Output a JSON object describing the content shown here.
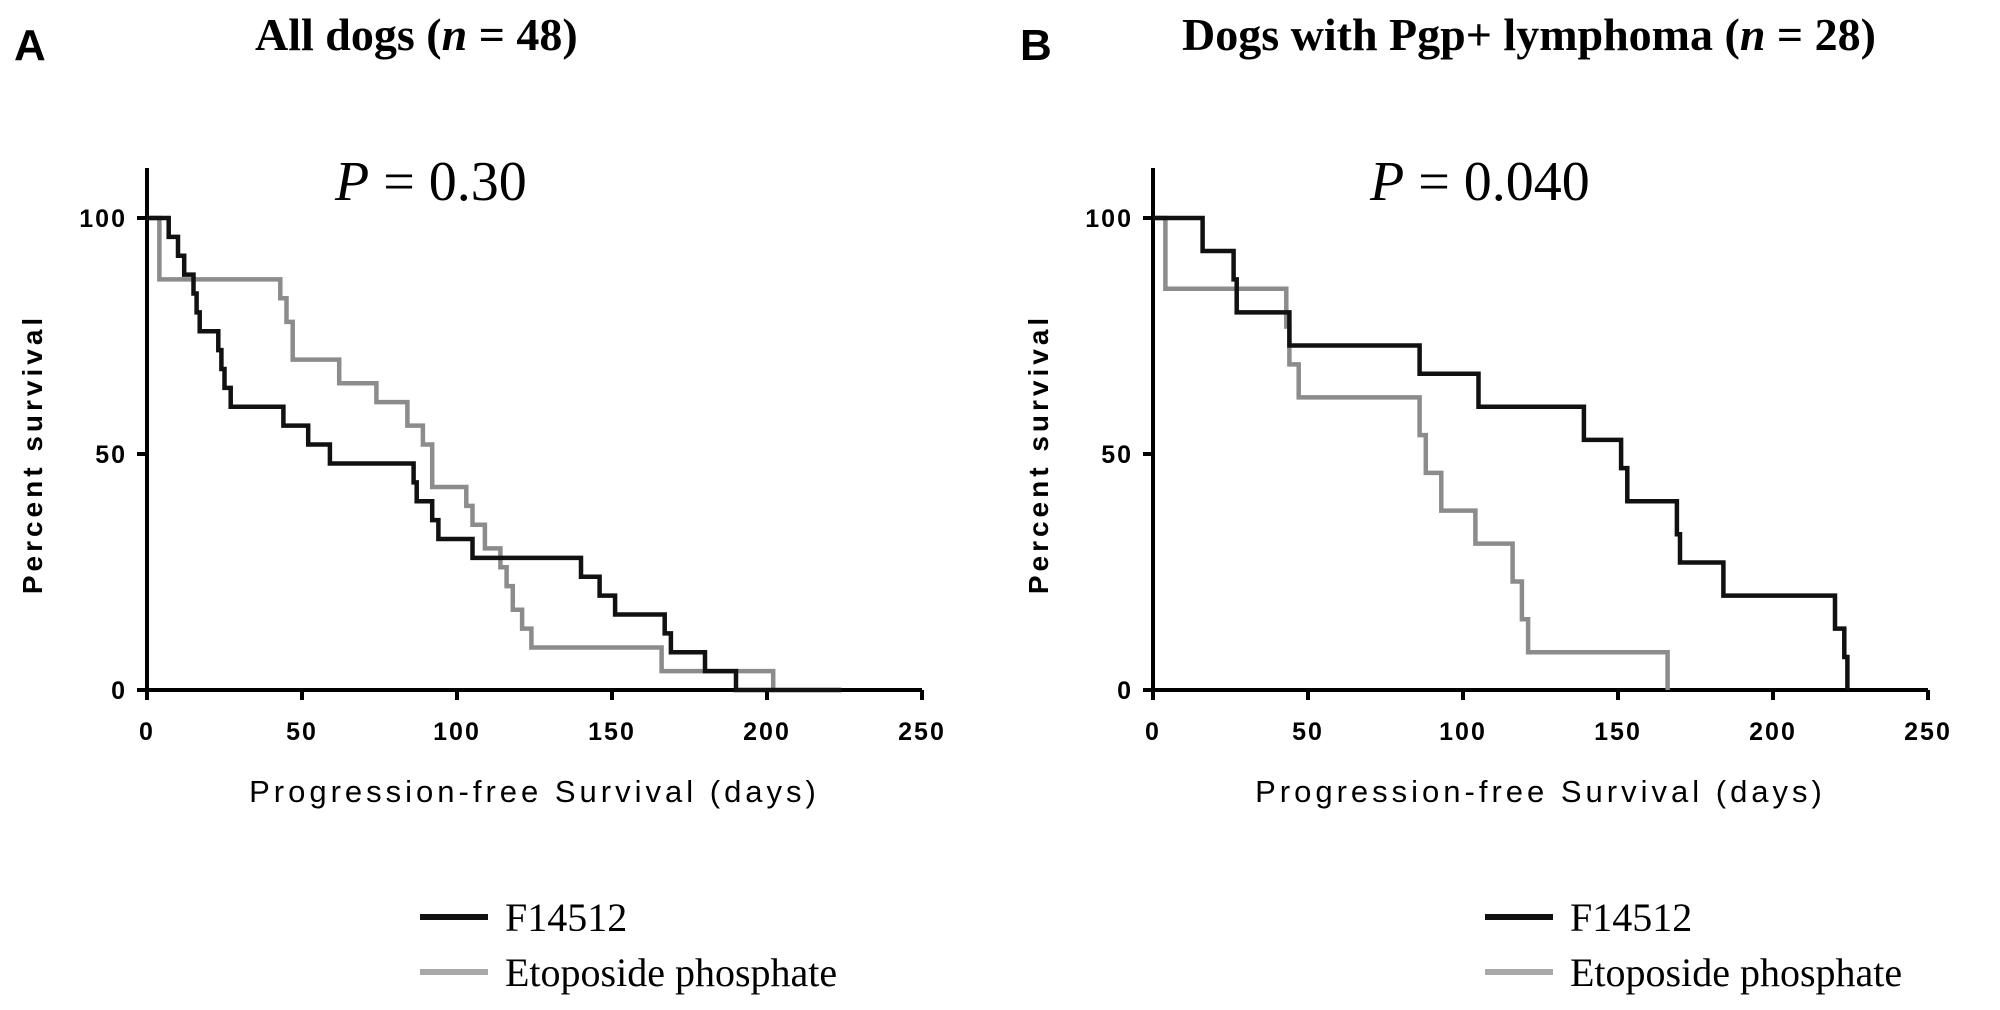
{
  "colors": {
    "F14512": "#111111",
    "Etoposide phosphate": "#8c8c8c"
  },
  "legend_colors": {
    "F14512": "#111111",
    "Etoposide phosphate": "#a8a8a8"
  },
  "panels": [
    {
      "letter": "A",
      "title_prefix": "All dogs (",
      "title_n": "n",
      "title_suffix": " = 48)",
      "p_symbol": "P",
      "p_value": " = 0.30"
    },
    {
      "letter": "B",
      "title_prefix": "Dogs with Pgp+ lymphoma (",
      "title_n": "n",
      "title_suffix": " = 28)",
      "p_symbol": "P",
      "p_value": " = 0.040"
    }
  ],
  "chart_data": [
    {
      "type": "line",
      "title": "All dogs (n = 48)",
      "annotation": "P = 0.30",
      "xlabel": "Progression-free Survival (days)",
      "ylabel": "Percent survival",
      "xlim": [
        0,
        250
      ],
      "ylim": [
        0,
        100
      ],
      "xticks": [
        0,
        50,
        100,
        150,
        200,
        250
      ],
      "yticks": [
        0,
        50,
        100
      ],
      "legend_position": "bottom",
      "series": [
        {
          "name": "F14512",
          "x": [
            0,
            7,
            10,
            12,
            15,
            16,
            17,
            23,
            24,
            25,
            27,
            44,
            52,
            59,
            86,
            87,
            92,
            94,
            105,
            140,
            146,
            151,
            167,
            169,
            180,
            190,
            207,
            220,
            224
          ],
          "y": [
            100,
            96,
            92,
            88,
            84,
            80,
            76,
            72,
            68,
            64,
            60,
            56,
            52,
            48,
            44,
            40,
            36,
            32,
            28,
            24,
            20,
            16,
            12,
            8,
            4,
            0,
            0,
            0,
            0
          ]
        },
        {
          "name": "Etoposide phosphate",
          "x": [
            0,
            4,
            43,
            45,
            47,
            62,
            74,
            84,
            89,
            92,
            103,
            105,
            109,
            114,
            116,
            118,
            121,
            124,
            130,
            150,
            166,
            202
          ],
          "y": [
            100,
            87,
            83,
            78,
            70,
            65,
            61,
            56,
            52,
            43,
            39,
            35,
            30,
            26,
            22,
            17,
            13,
            9,
            9,
            9,
            4,
            0
          ]
        }
      ]
    },
    {
      "type": "line",
      "title": "Dogs with Pgp+ lymphoma (n = 28)",
      "annotation": "P = 0.040",
      "xlabel": "Progression-free Survival (days)",
      "ylabel": "Percent survival",
      "xlim": [
        0,
        250
      ],
      "ylim": [
        0,
        100
      ],
      "xticks": [
        0,
        50,
        100,
        150,
        200,
        250
      ],
      "yticks": [
        0,
        50,
        100
      ],
      "legend_position": "bottom",
      "series": [
        {
          "name": "F14512",
          "x": [
            0,
            16,
            26,
            27,
            44,
            86,
            105,
            139,
            151,
            153,
            169,
            170,
            184,
            220,
            223,
            224
          ],
          "y": [
            100,
            93,
            87,
            80,
            73,
            67,
            60,
            53,
            47,
            40,
            33,
            27,
            20,
            13,
            7,
            0
          ]
        },
        {
          "name": "Etoposide phosphate",
          "x": [
            0,
            4,
            43,
            44,
            47,
            86,
            88,
            93,
            104,
            116,
            119,
            121,
            123,
            129,
            166
          ],
          "y": [
            100,
            85,
            77,
            69,
            62,
            54,
            46,
            38,
            31,
            23,
            15,
            8,
            8,
            8,
            0
          ]
        }
      ]
    }
  ]
}
